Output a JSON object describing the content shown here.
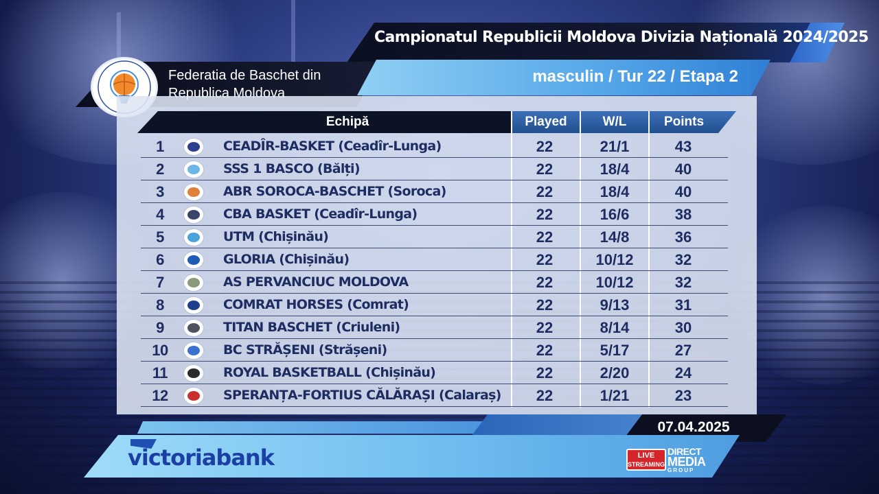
{
  "header": {
    "title": "Campionatul Republicii Moldova Divizia Națională 2024/2025",
    "subtitle": "masculin / Tur 22 / Etapa 2"
  },
  "federation": {
    "name_line1": "Federatia de Baschet din",
    "name_line2": "Republica Moldova",
    "logo_icon": "federation-basketball-logo"
  },
  "table": {
    "columns": {
      "team": "Echipă",
      "played": "Played",
      "wl": "W/L",
      "points": "Points"
    },
    "rows": [
      {
        "rank": "1",
        "team": "CEADÎR-BASKET (Ceadîr-Lunga)",
        "played": "22",
        "wl": "21/1",
        "points": "43",
        "logo_color": "#2b3f8f"
      },
      {
        "rank": "2",
        "team": "SSS 1 BASCO (Bălți)",
        "played": "22",
        "wl": "18/4",
        "points": "40",
        "logo_color": "#6db6e8"
      },
      {
        "rank": "3",
        "team": "ABR SOROCA-BASCHET (Soroca)",
        "played": "22",
        "wl": "18/4",
        "points": "40",
        "logo_color": "#e0803a"
      },
      {
        "rank": "4",
        "team": "CBA BASKET (Ceadîr-Lunga)",
        "played": "22",
        "wl": "16/6",
        "points": "38",
        "logo_color": "#3a4468"
      },
      {
        "rank": "5",
        "team": "UTM (Chișinău)",
        "played": "22",
        "wl": "14/8",
        "points": "36",
        "logo_color": "#4aa3d8"
      },
      {
        "rank": "6",
        "team": "GLORIA (Chișinău)",
        "played": "22",
        "wl": "10/12",
        "points": "32",
        "logo_color": "#1e5bb8"
      },
      {
        "rank": "7",
        "team": "AS PERVANCIUC MOLDOVA",
        "played": "22",
        "wl": "10/12",
        "points": "32",
        "logo_color": "#8a9a7a"
      },
      {
        "rank": "8",
        "team": "COMRAT HORSES (Comrat)",
        "played": "22",
        "wl": "9/13",
        "points": "31",
        "logo_color": "#1d3e8a"
      },
      {
        "rank": "9",
        "team": "TITAN BASCHET (Criuleni)",
        "played": "22",
        "wl": "8/14",
        "points": "30",
        "logo_color": "#4d5460"
      },
      {
        "rank": "10",
        "team": "BC STRĂȘENI (Strășeni)",
        "played": "22",
        "wl": "5/17",
        "points": "27",
        "logo_color": "#3b6fd0"
      },
      {
        "rank": "11",
        "team": "ROYAL BASKETBALL (Chișinău)",
        "played": "22",
        "wl": "2/20",
        "points": "24",
        "logo_color": "#2a2a2a"
      },
      {
        "rank": "12",
        "team": "SPERANȚA-FORTIUS CĂLĂRAȘI (Calaraș)",
        "played": "22",
        "wl": "1/21",
        "points": "23",
        "logo_color": "#c9302c"
      }
    ]
  },
  "footer": {
    "date": "07.04.2025",
    "sponsor": "victoriabank",
    "live_line1": "LIVE",
    "live_line2": "STREAMING",
    "media_line1": "DIRECT",
    "media_line2": "MEDIA",
    "media_line3": "GROUP"
  },
  "colors": {
    "title_bar": "#0b0f22",
    "subtitle_bar": "#54a6e8",
    "table_text": "#1d2d62",
    "column_header": "#22508f",
    "sponsor_bar": "#6fbdf0"
  }
}
